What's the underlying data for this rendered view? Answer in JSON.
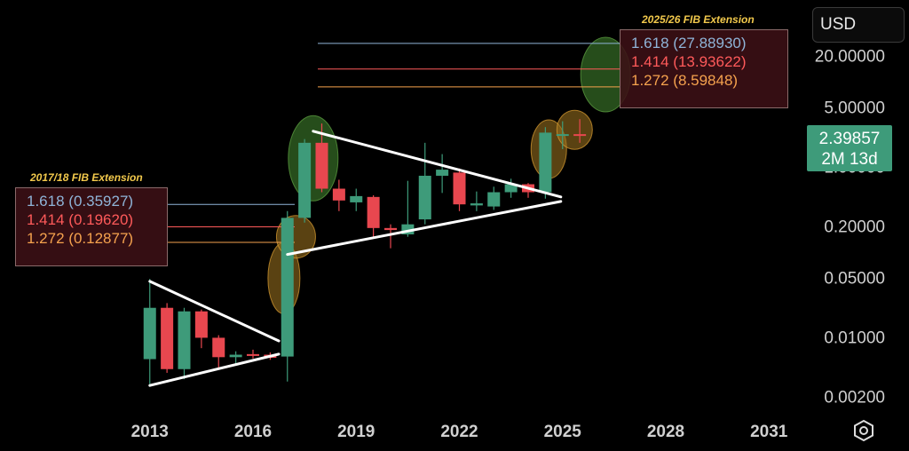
{
  "toolbar": {
    "currency": "USD"
  },
  "price_tag": {
    "value": "2.39857",
    "time_left": "2M 13d"
  },
  "fib_2017": {
    "title": "2017/18 FIB Extension",
    "levels": [
      {
        "ratio": "1.618",
        "value": "(0.35927)",
        "price": 0.35927
      },
      {
        "ratio": "1.414",
        "value": "(0.19620)",
        "price": 0.1962
      },
      {
        "ratio": "1.272",
        "value": "(0.12877)",
        "price": 0.12877
      }
    ]
  },
  "fib_2025": {
    "title": "2025/26 FIB Extension",
    "levels": [
      {
        "ratio": "1.618",
        "value": "(27.88930)",
        "price": 27.8893
      },
      {
        "ratio": "1.414",
        "value": "(13.93622)",
        "price": 13.93622
      },
      {
        "ratio": "1.272",
        "value": "(8.59848)",
        "price": 8.59848
      }
    ]
  },
  "colors": {
    "up": "#3e9b7a",
    "down": "#e8474f",
    "fib_blue": "#8fb4d8",
    "fib_red": "#ff5a5a",
    "fib_orange": "#f5a24e",
    "trendline": "#ffffff"
  },
  "chart_data": {
    "type": "candlestick",
    "y_scale": "log",
    "ylim": [
      0.0012,
      90
    ],
    "xlim": [
      2012.0,
      2032.0
    ],
    "y_ticks": [
      "20.00000",
      "5.00000",
      "1.00000",
      "0.20000",
      "0.05000",
      "0.01000",
      "0.00200"
    ],
    "y_tick_values": [
      20,
      5,
      1,
      0.2,
      0.05,
      0.01,
      0.002
    ],
    "x_ticks": [
      "2013",
      "2016",
      "2019",
      "2022",
      "2025",
      "2028",
      "2031"
    ],
    "x_tick_values": [
      2013,
      2016,
      2019,
      2022,
      2025,
      2028,
      2031
    ],
    "candles": [
      {
        "t": 2013.0,
        "o": 0.0055,
        "h": 0.048,
        "l": 0.0028,
        "c": 0.022
      },
      {
        "t": 2013.5,
        "o": 0.022,
        "h": 0.025,
        "l": 0.0038,
        "c": 0.0042
      },
      {
        "t": 2014.0,
        "o": 0.0042,
        "h": 0.022,
        "l": 0.0032,
        "c": 0.02
      },
      {
        "t": 2014.5,
        "o": 0.02,
        "h": 0.021,
        "l": 0.0074,
        "c": 0.0098
      },
      {
        "t": 2015.0,
        "o": 0.0098,
        "h": 0.0105,
        "l": 0.0043,
        "c": 0.0058
      },
      {
        "t": 2015.5,
        "o": 0.0058,
        "h": 0.0068,
        "l": 0.0046,
        "c": 0.0062
      },
      {
        "t": 2016.0,
        "o": 0.0063,
        "h": 0.0071,
        "l": 0.0056,
        "c": 0.006
      },
      {
        "t": 2016.5,
        "o": 0.0062,
        "h": 0.0066,
        "l": 0.0054,
        "c": 0.0057
      },
      {
        "t": 2017.0,
        "o": 0.0059,
        "h": 0.3,
        "l": 0.003,
        "c": 0.25
      },
      {
        "t": 2017.5,
        "o": 0.25,
        "h": 2.1,
        "l": 0.22,
        "c": 1.9
      },
      {
        "t": 2018.0,
        "o": 1.9,
        "h": 3.2,
        "l": 0.5,
        "c": 0.55
      },
      {
        "t": 2018.5,
        "o": 0.55,
        "h": 0.7,
        "l": 0.3,
        "c": 0.4
      },
      {
        "t": 2019.0,
        "o": 0.38,
        "h": 0.55,
        "l": 0.3,
        "c": 0.45
      },
      {
        "t": 2019.5,
        "o": 0.44,
        "h": 0.46,
        "l": 0.15,
        "c": 0.19
      },
      {
        "t": 2020.0,
        "o": 0.19,
        "h": 0.21,
        "l": 0.11,
        "c": 0.18
      },
      {
        "t": 2020.5,
        "o": 0.16,
        "h": 0.68,
        "l": 0.15,
        "c": 0.21
      },
      {
        "t": 2021.0,
        "o": 0.24,
        "h": 1.9,
        "l": 0.21,
        "c": 0.78
      },
      {
        "t": 2021.5,
        "o": 0.78,
        "h": 1.4,
        "l": 0.49,
        "c": 0.92
      },
      {
        "t": 2022.0,
        "o": 0.85,
        "h": 0.95,
        "l": 0.3,
        "c": 0.36
      },
      {
        "t": 2022.5,
        "o": 0.35,
        "h": 0.51,
        "l": 0.3,
        "c": 0.37
      },
      {
        "t": 2023.0,
        "o": 0.34,
        "h": 0.58,
        "l": 0.31,
        "c": 0.5
      },
      {
        "t": 2023.5,
        "o": 0.5,
        "h": 0.72,
        "l": 0.43,
        "c": 0.62
      },
      {
        "t": 2024.0,
        "o": 0.62,
        "h": 0.64,
        "l": 0.43,
        "c": 0.5
      },
      {
        "t": 2024.5,
        "o": 0.5,
        "h": 2.9,
        "l": 0.42,
        "c": 2.5
      },
      {
        "t": 2025.0,
        "o": 2.3,
        "h": 3.4,
        "l": 1.6,
        "c": 2.4
      },
      {
        "t": 2025.5,
        "o": 2.4,
        "h": 3.6,
        "l": 1.9,
        "c": 2.39857
      }
    ],
    "trendlines": [
      {
        "t1": 2013.0,
        "p1": 0.045,
        "t2": 2016.75,
        "p2": 0.009
      },
      {
        "t1": 2013.0,
        "p1": 0.0027,
        "t2": 2016.75,
        "p2": 0.0063
      },
      {
        "t1": 2017.75,
        "p1": 2.6,
        "t2": 2024.95,
        "p2": 0.44
      },
      {
        "t1": 2017.0,
        "p1": 0.093,
        "t2": 2024.95,
        "p2": 0.39
      }
    ],
    "highlights": [
      {
        "t": 2016.9,
        "p": 0.049,
        "color": "orange"
      },
      {
        "t": 2017.25,
        "p": 0.15,
        "color": "orange"
      },
      {
        "t": 2017.75,
        "p": 1.25,
        "color": "green"
      },
      {
        "t": 2024.6,
        "p": 1.6,
        "color": "orange"
      },
      {
        "t": 2025.35,
        "p": 2.7,
        "color": "orange"
      },
      {
        "t": 2026.25,
        "p": 12.0,
        "color": "green"
      }
    ]
  }
}
